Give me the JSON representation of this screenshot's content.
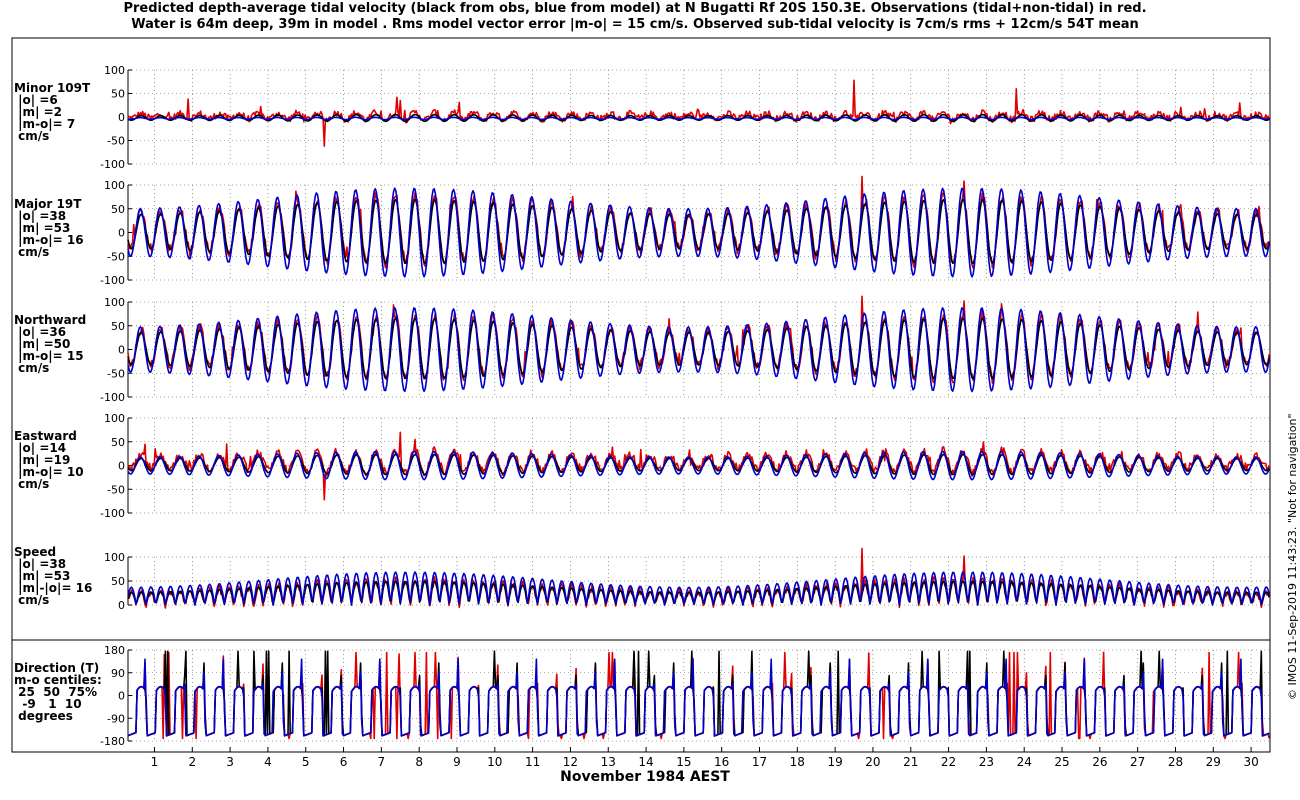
{
  "title_line1": "Predicted depth-average tidal velocity (black from obs, blue from model) at N Bugatti Rf 20S 150.3E. Observations (tidal+non-tidal) in red.",
  "title_line2": "Water is 64m deep, 39m in model . Rms model vector error |m-o| = 15 cm/s. Observed sub-tidal velocity is 7cm/s rms + 12cm/s 54T mean",
  "x_axis_label": "November 1984 AEST",
  "side_note": "© IMOS 11-Sep-2019 11:43:23. \"Not for navigation\"",
  "colors": {
    "observed_tidal": "#000000",
    "model": "#0000cc",
    "observations": "#e00000",
    "grid": "#555555"
  },
  "chart_data": [
    {
      "type": "line",
      "panel_label": [
        "Minor 109T",
        " |o| =6",
        " |m| =2",
        " |m-o|= 7",
        " cm/s"
      ],
      "x_range": [
        0.3,
        30.5
      ],
      "ylim": [
        -100,
        100
      ],
      "yticks": [
        -100,
        -50,
        0,
        50,
        100
      ],
      "grid": true,
      "series": [
        {
          "name": "black from obs",
          "amplitude": 6,
          "mean": -2,
          "modulation": 0.2
        },
        {
          "name": "blue from model",
          "amplitude": 2,
          "mean": -3,
          "modulation": 0.2
        },
        {
          "name": "Observations (tidal+non-tidal)",
          "amplitude": 6,
          "mean": 2,
          "noise": 7,
          "spikes": [
            [
              5.5,
              -62
            ],
            [
              7.4,
              42
            ],
            [
              7.5,
              35
            ],
            [
              19.5,
              78
            ],
            [
              23.8,
              60
            ],
            [
              1.9,
              38
            ],
            [
              29.7,
              30
            ]
          ]
        }
      ]
    },
    {
      "type": "line",
      "panel_label": [
        "Major 19T",
        " |o| =38",
        " |m| =53",
        " |m-o|= 16",
        " cm/s"
      ],
      "x_range": [
        0.3,
        30.5
      ],
      "ylim": [
        -100,
        100
      ],
      "yticks": [
        -100,
        -50,
        0,
        50,
        100
      ],
      "grid": true,
      "series": [
        {
          "name": "black from obs",
          "amplitude": 52,
          "mean": 2,
          "modulation": 0.3
        },
        {
          "name": "blue from model",
          "amplitude": 72,
          "mean": 0,
          "modulation": 0.3
        },
        {
          "name": "Observations (tidal+non-tidal)",
          "amplitude": 55,
          "mean": 5,
          "noise": 10,
          "spikes": [
            [
              19.7,
              118
            ],
            [
              22.4,
              108
            ],
            [
              7.6,
              -40
            ]
          ]
        }
      ]
    },
    {
      "type": "line",
      "panel_label": [
        "Northward",
        " |o| =36",
        " |m| =50",
        " |m-o|= 15",
        " cm/s"
      ],
      "x_range": [
        0.3,
        30.5
      ],
      "ylim": [
        -100,
        100
      ],
      "yticks": [
        -100,
        -50,
        0,
        50,
        100
      ],
      "grid": true,
      "series": [
        {
          "name": "black from obs",
          "amplitude": 49,
          "mean": 2,
          "modulation": 0.3
        },
        {
          "name": "blue from model",
          "amplitude": 68,
          "mean": 0,
          "modulation": 0.3
        },
        {
          "name": "Observations (tidal+non-tidal)",
          "amplitude": 52,
          "mean": 5,
          "noise": 10,
          "spikes": [
            [
              19.7,
              112
            ],
            [
              22.4,
              102
            ]
          ]
        }
      ]
    },
    {
      "type": "line",
      "panel_label": [
        "Eastward",
        " |o| =14",
        " |m| =19",
        " |m-o|= 10",
        " cm/s"
      ],
      "x_range": [
        0.3,
        30.5
      ],
      "ylim": [
        -100,
        100
      ],
      "yticks": [
        -100,
        -50,
        0,
        50,
        100
      ],
      "grid": true,
      "series": [
        {
          "name": "black from obs",
          "amplitude": 17,
          "mean": 2,
          "modulation": 0.25
        },
        {
          "name": "blue from model",
          "amplitude": 24,
          "mean": 0,
          "modulation": 0.25
        },
        {
          "name": "Observations (tidal+non-tidal)",
          "amplitude": 18,
          "mean": 8,
          "noise": 9,
          "spikes": [
            [
              5.5,
              -72
            ],
            [
              7.5,
              70
            ],
            [
              7.9,
              55
            ],
            [
              2.9,
              45
            ]
          ]
        }
      ]
    },
    {
      "type": "line",
      "panel_label": [
        "Speed",
        " |o| =38",
        " |m| =53",
        " |m|-|o|= 16",
        " cm/s"
      ],
      "x_range": [
        0.3,
        30.5
      ],
      "ylim": [
        0,
        100
      ],
      "yticks": [
        0,
        50,
        100
      ],
      "grid": true,
      "series": [
        {
          "name": "black from obs",
          "amplitude": 38,
          "mean": 0,
          "modulation": 0.3
        },
        {
          "name": "blue from model",
          "amplitude": 53,
          "mean": 0,
          "modulation": 0.3
        },
        {
          "name": "Observations (tidal+non-tidal)",
          "amplitude": 40,
          "mean": 0,
          "noise": 8,
          "spikes": [
            [
              19.7,
              118
            ],
            [
              22.4,
              102
            ]
          ]
        }
      ]
    },
    {
      "type": "line",
      "panel_label": [
        "Direction (T)",
        "m-o centiles:",
        " 25  50  75%",
        "  -9   1  10",
        " degrees"
      ],
      "x_range": [
        0.3,
        30.5
      ],
      "ylim": [
        -180,
        180
      ],
      "yticks": [
        -180,
        -90,
        0,
        90,
        180
      ],
      "grid": true,
      "series": [
        {
          "name": "black from obs",
          "kind": "direction"
        },
        {
          "name": "blue from model",
          "kind": "direction"
        },
        {
          "name": "Observations (tidal+non-tidal)",
          "kind": "direction"
        }
      ]
    }
  ],
  "x_tick_labels": [
    "1",
    "2",
    "3",
    "4",
    "5",
    "6",
    "7",
    "8",
    "9",
    "10",
    "11",
    "12",
    "13",
    "14",
    "15",
    "16",
    "17",
    "18",
    "19",
    "20",
    "21",
    "22",
    "23",
    "24",
    "25",
    "26",
    "27",
    "28",
    "29",
    "30"
  ]
}
